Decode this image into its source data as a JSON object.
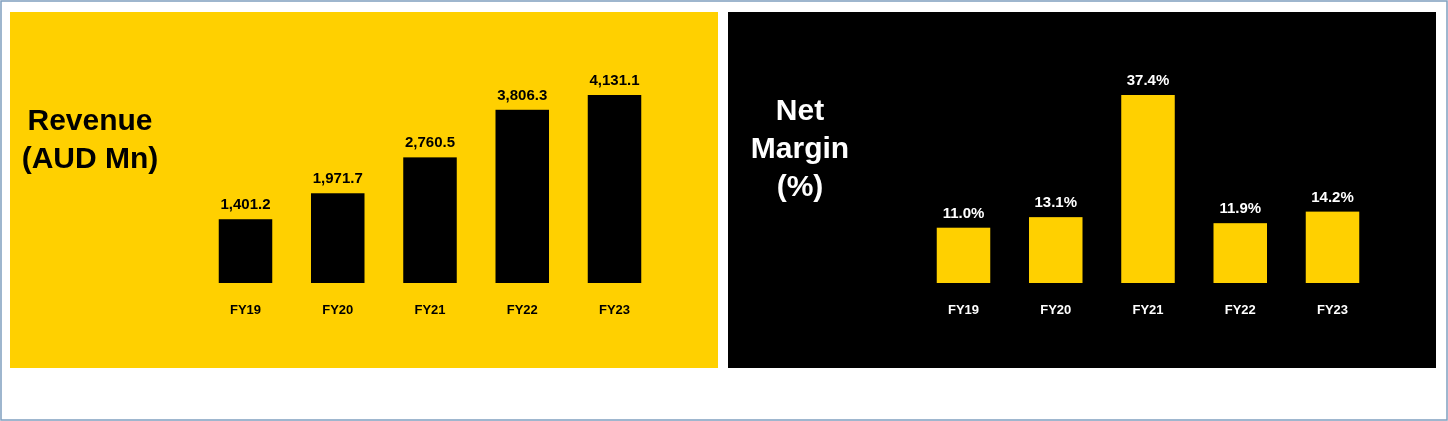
{
  "chart_data": [
    {
      "type": "bar",
      "title": "Revenue (AUD Mn)",
      "categories": [
        "FY19",
        "FY20",
        "FY21",
        "FY22",
        "FY23"
      ],
      "values": [
        1401.2,
        1971.7,
        2760.5,
        3806.3,
        4131.1
      ],
      "color": "#000000",
      "value_labels": [
        "1,401.2",
        "1,971.7",
        "2,760.5",
        "3,806.3",
        "4,131.1"
      ]
    },
    {
      "type": "bar",
      "title": "Net Margin (%)",
      "categories": [
        "FY19",
        "FY20",
        "FY21",
        "FY22",
        "FY23"
      ],
      "values": [
        11.0,
        13.1,
        37.4,
        11.9,
        14.2
      ],
      "color": "#ffd000",
      "value_labels": [
        "11.0%",
        "13.1%",
        "37.4%",
        "11.9%",
        "14.2%"
      ]
    }
  ]
}
